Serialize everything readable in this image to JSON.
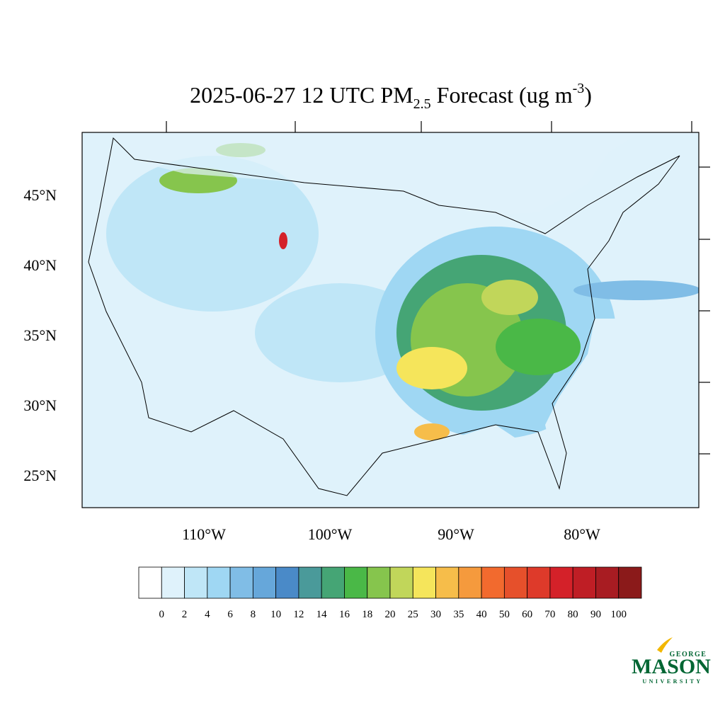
{
  "title": {
    "main": "2025-06-27 12 UTC PM",
    "subscript": "2.5",
    "text": " Forecast (ug m",
    "superscript": "-3",
    "end": ")"
  },
  "lat_labels": [
    {
      "value": 45,
      "label": "45°N"
    },
    {
      "value": 40,
      "label": "40°N"
    },
    {
      "value": 35,
      "label": "35°N"
    },
    {
      "value": 30,
      "label": "30°N"
    },
    {
      "value": 25,
      "label": "25°N"
    }
  ],
  "lon_labels": [
    {
      "value": -110,
      "label": "110°W"
    },
    {
      "value": -100,
      "label": "100°W"
    },
    {
      "value": -90,
      "label": "90°W"
    },
    {
      "value": -80,
      "label": "80°W"
    }
  ],
  "colorbar": {
    "levels": [
      0,
      2,
      4,
      6,
      8,
      10,
      12,
      14,
      16,
      18,
      20,
      25,
      30,
      35,
      40,
      50,
      60,
      70,
      80,
      90,
      100
    ],
    "colors": [
      "#ffffff",
      "#dff2fb",
      "#bfe6f7",
      "#9fd7f3",
      "#80bde6",
      "#66a7da",
      "#4a8ac8",
      "#4a9a9a",
      "#45a575",
      "#4ab847",
      "#86c54d",
      "#c1d65a",
      "#f5e55b",
      "#f6bd4a",
      "#f59a3d",
      "#f26a2e",
      "#e6502b",
      "#de3a2a",
      "#d42129",
      "#bf1e25",
      "#a81c22",
      "#8b1a1a"
    ]
  },
  "logo": {
    "top": "GEORGE",
    "main": "MASON",
    "bottom": "UNIVERSITY"
  }
}
